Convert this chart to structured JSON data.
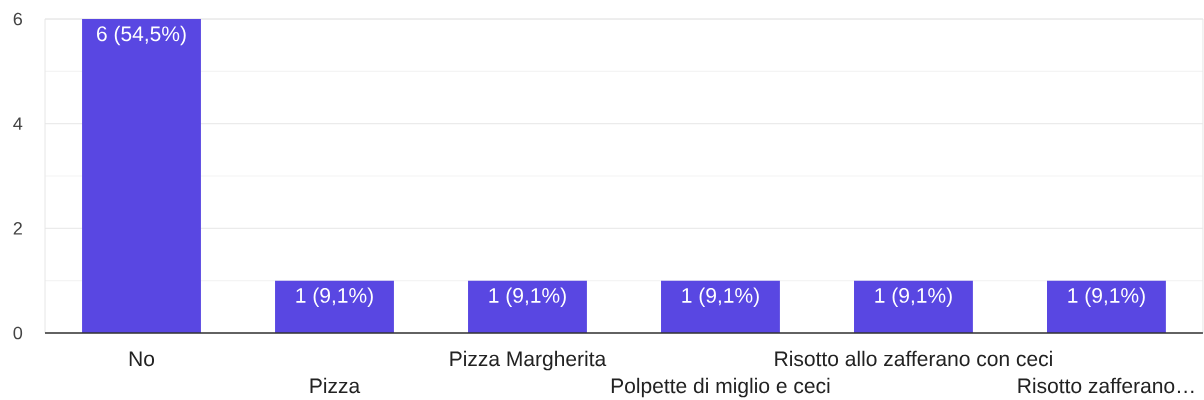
{
  "chart_data": {
    "type": "bar",
    "categories": [
      "No",
      "Pizza",
      "Pizza Margherita",
      "Polpette di miglio e ceci",
      "Risotto allo zafferano con ceci",
      "Risotto zafferano…"
    ],
    "values": [
      6,
      1,
      1,
      1,
      1,
      1
    ],
    "value_labels": [
      "6 (54,5%)",
      "1 (9,1%)",
      "1 (9,1%)",
      "1 (9,1%)",
      "1 (9,1%)",
      "1 (9,1%)"
    ],
    "color": "#5947e2",
    "ylim": [
      0,
      6
    ],
    "yticks": [
      0,
      {
        "value": 1,
        "label": null
      },
      2,
      {
        "value": 3,
        "label": null
      },
      4,
      {
        "value": 5,
        "label": null
      },
      6
    ],
    "grid": "y"
  }
}
